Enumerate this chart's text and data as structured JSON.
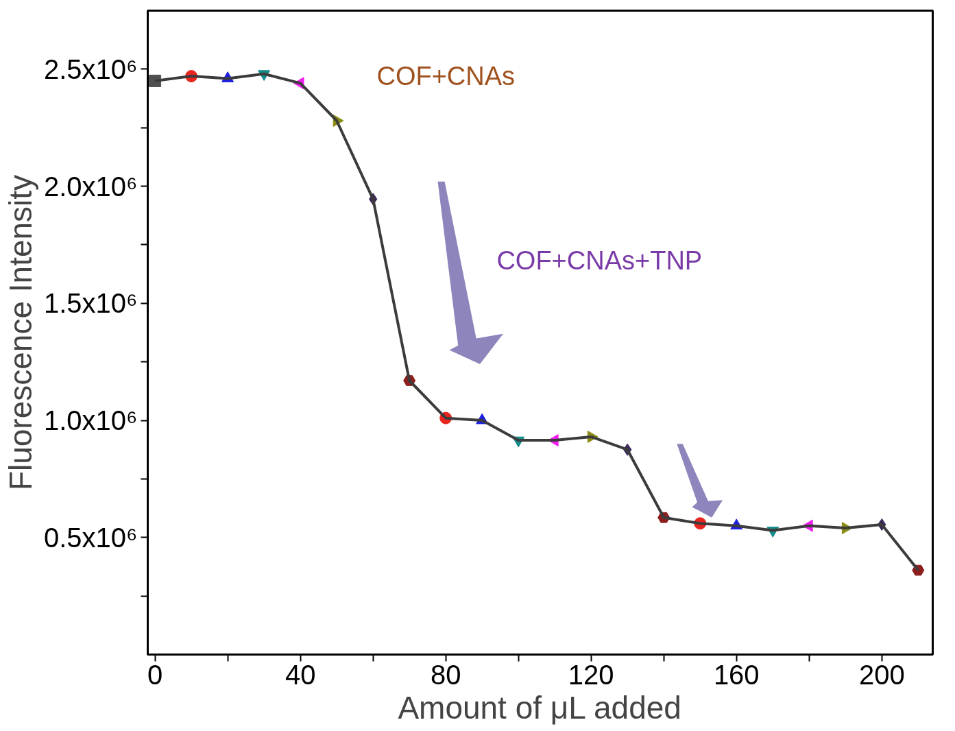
{
  "chart_data": {
    "type": "line",
    "xlabel": "Amount of μL added",
    "ylabel": "Fluorescence Intensity",
    "xlim": [
      -2,
      214
    ],
    "ylim": [
      0,
      2750000
    ],
    "xticks": [
      0,
      {
        "value": 20,
        "label": null
      },
      40,
      {
        "value": 60,
        "label": null
      },
      80,
      {
        "value": 100,
        "label": null
      },
      120,
      {
        "value": 140,
        "label": null
      },
      160,
      {
        "value": 180,
        "label": null
      },
      200
    ],
    "yticks": [
      {
        "value": 250000,
        "label": null
      },
      {
        "value": 500000,
        "label": "0.5x10⁶"
      },
      {
        "value": 750000,
        "label": null
      },
      {
        "value": 1000000,
        "label": "1.0x10⁶"
      },
      {
        "value": 1250000,
        "label": null
      },
      {
        "value": 1500000,
        "label": "1.5x10⁶"
      },
      {
        "value": 1750000,
        "label": null
      },
      {
        "value": 2000000,
        "label": "2.0x10⁶"
      },
      {
        "value": 2250000,
        "label": null
      },
      {
        "value": 2500000,
        "label": "2.5x10⁶"
      }
    ],
    "grid": false,
    "annotations": [
      "COF+CNAs",
      "COF+CNAs+TNP"
    ],
    "series": [
      {
        "color": "#3c3c3c",
        "marker": "none",
        "x": [
          0,
          10,
          20,
          30,
          40,
          50,
          60,
          70,
          80,
          90,
          100,
          110,
          120,
          130,
          140,
          150,
          160,
          170,
          180,
          190,
          200,
          210
        ],
        "values": [
          2450000,
          2470000,
          2460000,
          2480000,
          2440000,
          2280000,
          1945000,
          1170000,
          1010000,
          1000000,
          915000,
          915000,
          930000,
          875000,
          585000,
          560000,
          550000,
          530000,
          550000,
          540000,
          555000,
          360000
        ]
      },
      {
        "type": "scatter",
        "color": "#505050",
        "marker": "square",
        "x": [
          0
        ],
        "values": [
          2450000
        ]
      },
      {
        "type": "scatter",
        "color": "#e8251e",
        "marker": "circle",
        "x": [
          10,
          80,
          150
        ],
        "values": [
          2470000,
          1010000,
          560000
        ]
      },
      {
        "type": "scatter",
        "color": "#1f1fe0",
        "marker": "triangle",
        "x": [
          20,
          90,
          160
        ],
        "values": [
          2460000,
          1000000,
          550000
        ]
      },
      {
        "type": "scatter",
        "color": "#148c8c",
        "marker": "triangle-down",
        "x": [
          30,
          100,
          170
        ],
        "values": [
          2480000,
          915000,
          530000
        ]
      },
      {
        "type": "scatter",
        "color": "#f01ef0",
        "marker": "triangle-left",
        "x": [
          40,
          110,
          180
        ],
        "values": [
          2440000,
          915000,
          550000
        ]
      },
      {
        "type": "scatter",
        "color": "#8c8c14",
        "marker": "triangle-right",
        "x": [
          50,
          120,
          190
        ],
        "values": [
          2280000,
          930000,
          540000
        ]
      },
      {
        "type": "scatter",
        "color": "#3c285a",
        "marker": "diamond",
        "x": [
          60,
          130,
          200
        ],
        "values": [
          1945000,
          875000,
          555000
        ]
      },
      {
        "type": "scatter",
        "color": "#8c1e1e",
        "x": [
          70,
          140,
          210
        ],
        "values": [
          1170000,
          585000,
          360000
        ]
      }
    ]
  }
}
